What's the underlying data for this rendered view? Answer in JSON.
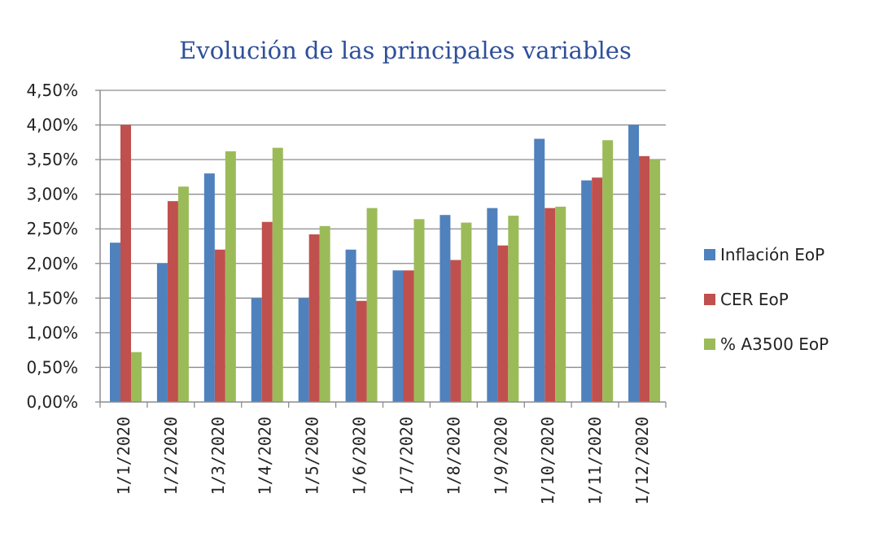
{
  "chart_data": {
    "type": "bar",
    "title": "Evolución  de las principales variables",
    "xlabel": "",
    "ylabel": "",
    "ylim": [
      0,
      0.045
    ],
    "ytick_values": [
      0,
      0.005,
      0.01,
      0.015,
      0.02,
      0.025,
      0.03,
      0.035,
      0.04,
      0.045
    ],
    "ytick_labels": [
      "0,00%",
      "0,50%",
      "1,00%",
      "1,50%",
      "2,00%",
      "2,50%",
      "3,00%",
      "3,50%",
      "4,00%",
      "4,50%"
    ],
    "categories": [
      "1/1/2020",
      "1/2/2020",
      "1/3/2020",
      "1/4/2020",
      "1/5/2020",
      "1/6/2020",
      "1/7/2020",
      "1/8/2020",
      "1/9/2020",
      "1/10/2020",
      "1/11/2020",
      "1/12/2020"
    ],
    "series": [
      {
        "name": "Inflación EoP",
        "color": "#4f81bd",
        "values": [
          0.023,
          0.02,
          0.033,
          0.015,
          0.015,
          0.022,
          0.019,
          0.027,
          0.028,
          0.038,
          0.032,
          0.04
        ]
      },
      {
        "name": "CER EoP",
        "color": "#c0504d",
        "values": [
          0.04,
          0.029,
          0.022,
          0.026,
          0.0242,
          0.0146,
          0.019,
          0.0205,
          0.0226,
          0.028,
          0.0324,
          0.0355
        ]
      },
      {
        "name": "% A3500 EoP",
        "color": "#9bbb59",
        "values": [
          0.0072,
          0.0311,
          0.0362,
          0.0367,
          0.0254,
          0.028,
          0.0264,
          0.0259,
          0.0269,
          0.0282,
          0.0378,
          0.035
        ]
      }
    ],
    "grid": true,
    "legend_position": "right"
  }
}
